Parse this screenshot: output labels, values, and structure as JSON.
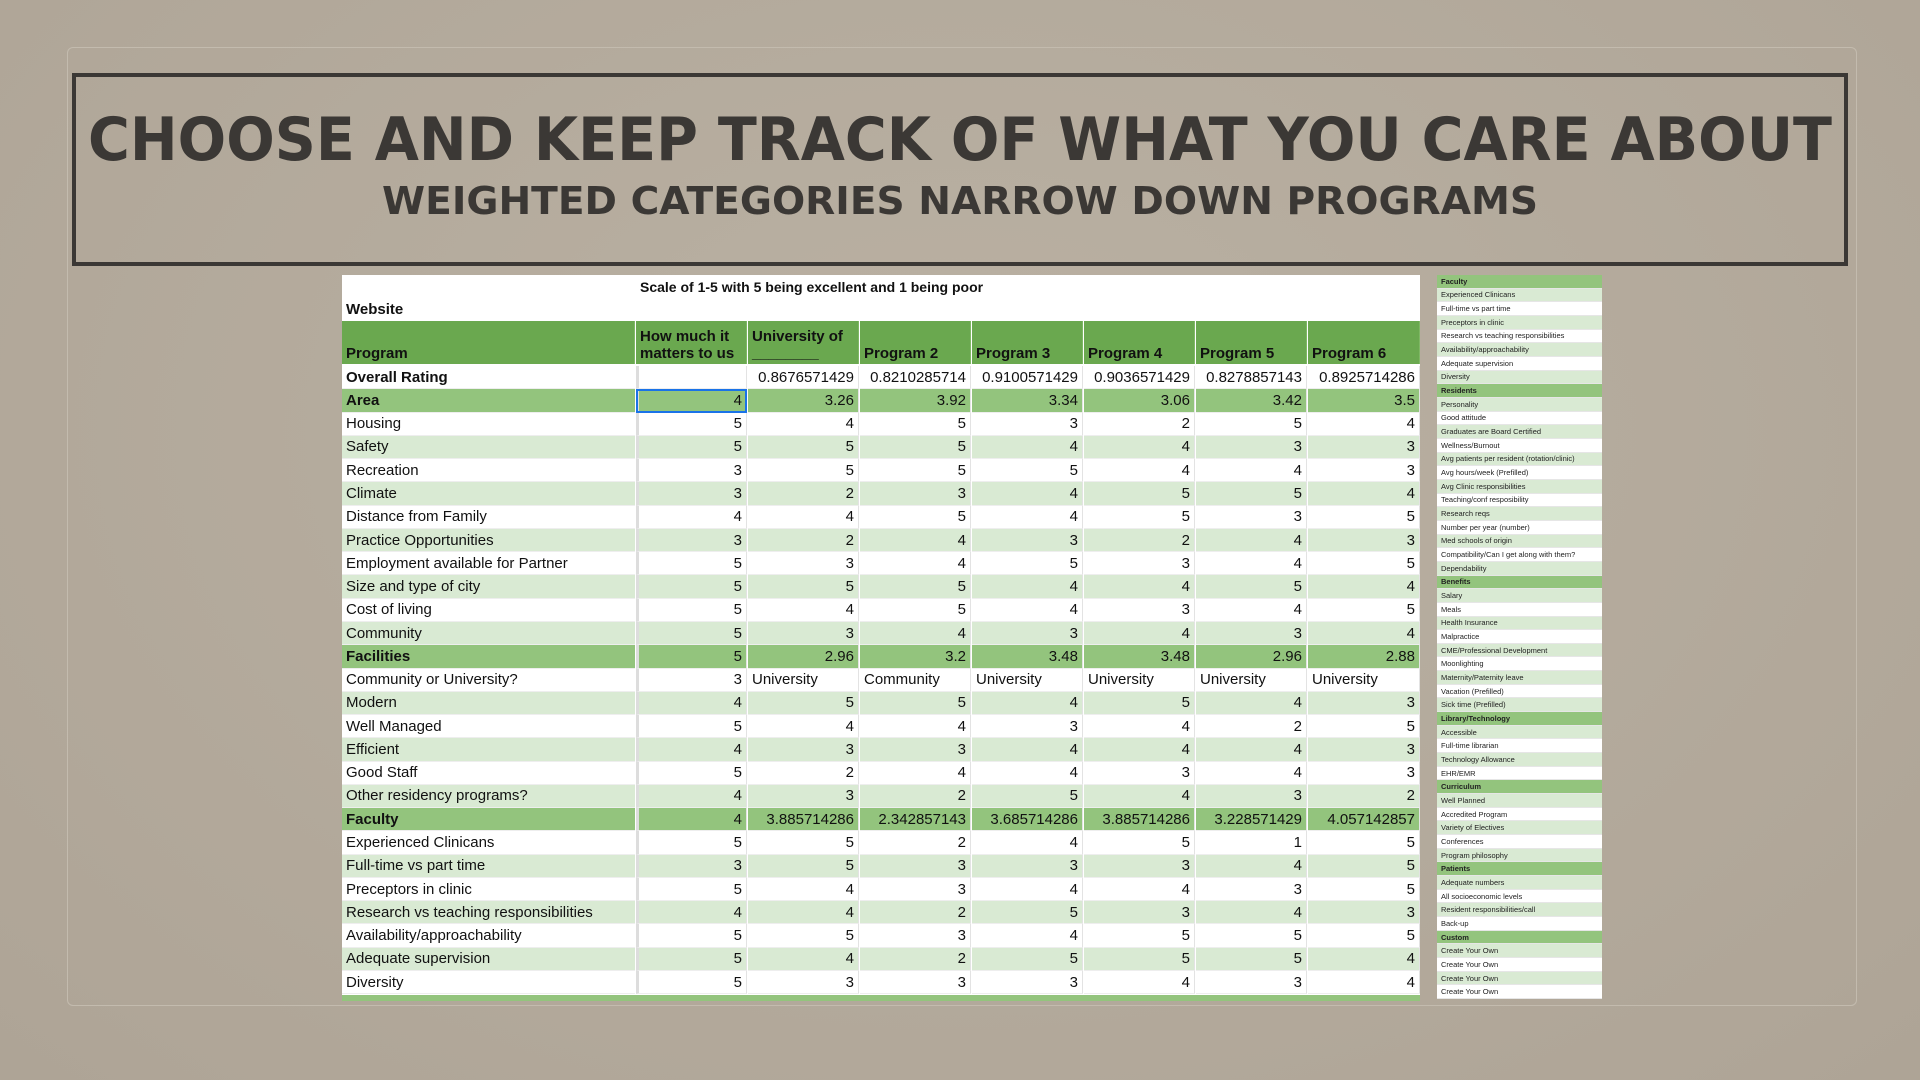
{
  "header": {
    "title": "CHOOSE AND KEEP TRACK OF WHAT YOU CARE ABOUT",
    "subtitle": "WEIGHTED CATEGORIES NARROW DOWN PROGRAMS"
  },
  "table": {
    "note": "Scale of 1-5 with 5 being excellent and 1 being poor",
    "website_label": "Website",
    "columns": [
      "Program",
      "How much it matters to us",
      "University of ________",
      "Program 2",
      "Program 3",
      "Program 4",
      "Program 5",
      "Program 6"
    ],
    "rows": [
      {
        "label": "Overall Rating",
        "style": "overall",
        "cells": [
          null,
          0.8676571429,
          0.8210285714,
          0.9100571429,
          0.9036571429,
          0.8278857143,
          0.8925714286
        ]
      },
      {
        "label": "Area",
        "style": "section",
        "cells": [
          4,
          3.26,
          3.92,
          3.34,
          3.06,
          3.42,
          3.5
        ]
      },
      {
        "label": "Housing",
        "style": "item",
        "cells": [
          5,
          4,
          5,
          3,
          2,
          5,
          4
        ]
      },
      {
        "label": "Safety",
        "style": "item",
        "cells": [
          5,
          5,
          5,
          4,
          4,
          3,
          3
        ]
      },
      {
        "label": "Recreation",
        "style": "item",
        "cells": [
          3,
          5,
          5,
          5,
          4,
          4,
          3
        ]
      },
      {
        "label": "Climate",
        "style": "item",
        "cells": [
          3,
          2,
          3,
          4,
          5,
          5,
          4
        ]
      },
      {
        "label": "Distance from Family",
        "style": "item",
        "cells": [
          4,
          4,
          5,
          4,
          5,
          3,
          5
        ]
      },
      {
        "label": "Practice Opportunities",
        "style": "item",
        "cells": [
          3,
          2,
          4,
          3,
          2,
          4,
          3
        ]
      },
      {
        "label": "Employment available for Partner",
        "style": "item",
        "cells": [
          5,
          3,
          4,
          5,
          3,
          4,
          5
        ]
      },
      {
        "label": "Size and type of city",
        "style": "item",
        "cells": [
          5,
          5,
          5,
          4,
          4,
          5,
          4
        ]
      },
      {
        "label": "Cost of living",
        "style": "item",
        "cells": [
          5,
          4,
          5,
          4,
          3,
          4,
          5
        ]
      },
      {
        "label": "Community",
        "style": "item",
        "cells": [
          5,
          3,
          4,
          3,
          4,
          3,
          4
        ]
      },
      {
        "label": "Facilities",
        "style": "section",
        "cells": [
          5,
          2.96,
          3.2,
          3.48,
          3.48,
          2.96,
          2.88
        ]
      },
      {
        "label": "Community or University?",
        "style": "item",
        "cells": [
          3,
          "University",
          "Community",
          "University",
          "University",
          "University",
          "University"
        ]
      },
      {
        "label": "Modern",
        "style": "item",
        "cells": [
          4,
          5,
          5,
          4,
          5,
          4,
          3
        ]
      },
      {
        "label": "Well Managed",
        "style": "item",
        "cells": [
          5,
          4,
          4,
          3,
          4,
          2,
          5
        ]
      },
      {
        "label": "Efficient",
        "style": "item",
        "cells": [
          4,
          3,
          3,
          4,
          4,
          4,
          3
        ]
      },
      {
        "label": "Good Staff",
        "style": "item",
        "cells": [
          5,
          2,
          4,
          4,
          3,
          4,
          3
        ]
      },
      {
        "label": "Other residency programs?",
        "style": "item",
        "cells": [
          4,
          3,
          2,
          5,
          4,
          3,
          2
        ]
      },
      {
        "label": "Faculty",
        "style": "section",
        "cells": [
          4,
          3.885714286,
          2.342857143,
          3.685714286,
          3.885714286,
          3.228571429,
          4.057142857
        ]
      },
      {
        "label": "Experienced Clinicans",
        "style": "item",
        "cells": [
          5,
          5,
          2,
          4,
          5,
          1,
          5
        ]
      },
      {
        "label": "Full-time vs part time",
        "style": "item",
        "cells": [
          3,
          5,
          3,
          3,
          3,
          4,
          5
        ]
      },
      {
        "label": "Preceptors in clinic",
        "style": "item",
        "cells": [
          5,
          4,
          3,
          4,
          4,
          3,
          5
        ]
      },
      {
        "label": "Research vs teaching responsibilities",
        "style": "item",
        "cells": [
          4,
          4,
          2,
          5,
          3,
          4,
          3
        ]
      },
      {
        "label": "Availability/approachability",
        "style": "item",
        "cells": [
          5,
          5,
          3,
          4,
          5,
          5,
          5
        ]
      },
      {
        "label": "Adequate supervision",
        "style": "item",
        "cells": [
          5,
          4,
          2,
          5,
          5,
          5,
          4
        ]
      },
      {
        "label": "Diversity",
        "style": "item",
        "cells": [
          5,
          3,
          3,
          3,
          4,
          3,
          4
        ]
      }
    ]
  },
  "sidebar": {
    "items": [
      {
        "label": "Faculty",
        "section": true
      },
      {
        "label": "Experienced Clinicans"
      },
      {
        "label": "Full-time vs part time"
      },
      {
        "label": "Preceptors in clinic"
      },
      {
        "label": "Research vs teaching responsibilities"
      },
      {
        "label": "Availability/approachability"
      },
      {
        "label": "Adequate supervision"
      },
      {
        "label": "Diversity"
      },
      {
        "label": "Residents",
        "section": true
      },
      {
        "label": "Personality"
      },
      {
        "label": "Good attitude"
      },
      {
        "label": "Graduates are Board Certified"
      },
      {
        "label": "Wellness/Burnout"
      },
      {
        "label": "Avg patients per resident (rotation/clinic)"
      },
      {
        "label": "Avg hours/week (Prefilled)"
      },
      {
        "label": "Avg Clinic responsibilities"
      },
      {
        "label": "Teaching/conf resposibility"
      },
      {
        "label": "Research reqs"
      },
      {
        "label": "Number per year (number)"
      },
      {
        "label": "Med schools of origin"
      },
      {
        "label": "Compatibility/Can I get along with them?"
      },
      {
        "label": "Dependability"
      },
      {
        "label": "Benefits",
        "section": true
      },
      {
        "label": "Salary"
      },
      {
        "label": "Meals"
      },
      {
        "label": "Health Insurance"
      },
      {
        "label": "Malpractice"
      },
      {
        "label": "CME/Professional Development"
      },
      {
        "label": "Moonlighting"
      },
      {
        "label": "Maternity/Paternity leave"
      },
      {
        "label": "Vacation (Prefilled)"
      },
      {
        "label": "Sick time (Prefilled)"
      },
      {
        "label": "Library/Technology",
        "section": true
      },
      {
        "label": "Accessible"
      },
      {
        "label": "Full-time librarian"
      },
      {
        "label": "Technology Allowance"
      },
      {
        "label": "EHR/EMR"
      },
      {
        "label": "Curriculum",
        "section": true
      },
      {
        "label": "Well Planned"
      },
      {
        "label": "Accredited Program"
      },
      {
        "label": "Variety of Electives"
      },
      {
        "label": "Conferences"
      },
      {
        "label": "Program philosophy"
      },
      {
        "label": "Patients",
        "section": true
      },
      {
        "label": "Adequate numbers"
      },
      {
        "label": "All socioeconomic levels"
      },
      {
        "label": "Resident responsibilities/call"
      },
      {
        "label": "Back-up"
      },
      {
        "label": "Custom",
        "section": true
      },
      {
        "label": "Create Your Own"
      },
      {
        "label": "Create Your Own"
      },
      {
        "label": "Create Your Own"
      },
      {
        "label": "Create Your Own"
      }
    ]
  }
}
